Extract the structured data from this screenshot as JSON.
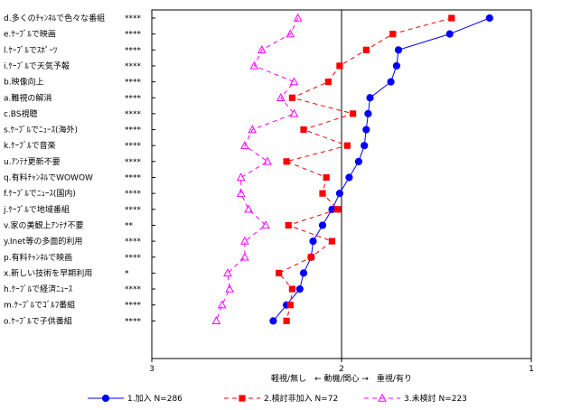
{
  "chart_data": {
    "type": "line",
    "orientation": "horizontal-dot-plot",
    "xlabel": "軽視/無し　← 動機/関心 →　重視/有り",
    "xlim": [
      3,
      1
    ],
    "xticks": [
      3,
      2,
      1
    ],
    "xtick_labels": [
      "3",
      "2",
      "1"
    ],
    "reference_line": 2,
    "categories": [
      {
        "label": "d.多くのﾁｬﾝﾈﾙで色々な番組",
        "sig": "****"
      },
      {
        "label": "e.ｹｰﾌﾞﾙで映画",
        "sig": "****"
      },
      {
        "label": "l.ｹｰﾌﾞﾙでｽﾎﾟｰﾂ",
        "sig": "****"
      },
      {
        "label": "i.ｹｰﾌﾞﾙで天気予報",
        "sig": "****"
      },
      {
        "label": "b.映像向上",
        "sig": "****"
      },
      {
        "label": "a.難視の解消",
        "sig": "****"
      },
      {
        "label": "c.BS視聴",
        "sig": "****"
      },
      {
        "label": "s.ｹｰﾌﾞﾙでﾆｭｰｽ(海外)",
        "sig": "****"
      },
      {
        "label": "k.ｹｰﾌﾞﾙで音楽",
        "sig": "****"
      },
      {
        "label": "u.ｱﾝﾃﾅ更新不要",
        "sig": "****"
      },
      {
        "label": "q.有料ﾁｬﾝﾈﾙでWOWOW",
        "sig": "****"
      },
      {
        "label": "f.ｹｰﾌﾞﾙでﾆｭｰｽ(国内)",
        "sig": "****"
      },
      {
        "label": "j.ｹｰﾌﾞﾙで地域番組",
        "sig": "****"
      },
      {
        "label": "v.家の美観上ｱﾝﾃﾅ不要",
        "sig": "**"
      },
      {
        "label": "y.Inet等の多面的利用",
        "sig": "****"
      },
      {
        "label": "p.有料ﾁｬﾝﾈﾙで映画",
        "sig": "****"
      },
      {
        "label": "x.新しい技術を早期利用",
        "sig": "*"
      },
      {
        "label": "h.ｹｰﾌﾞﾙで経済ﾆｭｰｽ",
        "sig": "****"
      },
      {
        "label": "m.ｹｰﾌﾞﾙでｺﾞﾙﾌ番組",
        "sig": "****"
      },
      {
        "label": "o.ｹｰﾌﾞﾙで子供番組",
        "sig": "****"
      }
    ],
    "series": [
      {
        "name": "1.加入 N=286",
        "color": "#0000ff",
        "line_style": "solid",
        "marker": "circle",
        "values": [
          1.22,
          1.43,
          1.7,
          1.71,
          1.74,
          1.85,
          1.86,
          1.87,
          1.88,
          1.91,
          1.96,
          2.01,
          2.05,
          2.1,
          2.15,
          2.16,
          2.2,
          2.22,
          2.29,
          2.36
        ]
      },
      {
        "name": "2.検討非加入 N=72",
        "color": "#ff0000",
        "line_style": "dashed",
        "marker": "square",
        "values": [
          1.42,
          1.73,
          1.87,
          2.01,
          2.07,
          2.26,
          1.94,
          2.2,
          1.97,
          2.29,
          2.08,
          2.1,
          2.02,
          2.28,
          2.05,
          2.16,
          2.33,
          2.26,
          2.27,
          2.29
        ]
      },
      {
        "name": "3.未検討 N=223",
        "color": "#ff00ff",
        "line_style": "dashed",
        "marker": "triangle-open",
        "values": [
          2.23,
          2.27,
          2.42,
          2.46,
          2.25,
          2.32,
          2.25,
          2.47,
          2.51,
          2.39,
          2.53,
          2.53,
          2.49,
          2.4,
          2.51,
          2.51,
          2.6,
          2.59,
          2.63,
          2.66
        ]
      }
    ],
    "legend_position": "bottom",
    "grid": false
  }
}
